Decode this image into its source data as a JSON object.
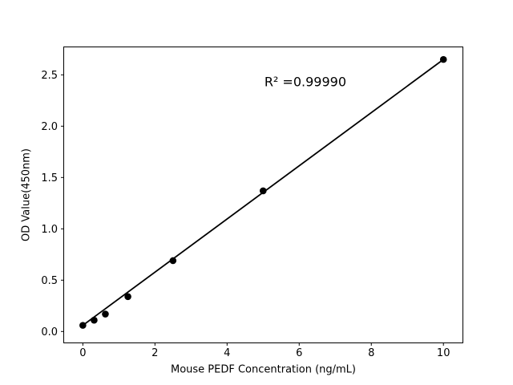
{
  "figure": {
    "background": "#ffffff"
  },
  "chart_data": {
    "type": "scatter",
    "title": "",
    "xlabel": "Mouse PEDF Concentration (ng/mL)",
    "ylabel": "OD Value(450nm)",
    "annotation": {
      "text": "R² =0.99990",
      "x": 6.17,
      "y": 2.39
    },
    "points": {
      "x": [
        0,
        0.3125,
        0.625,
        1.25,
        2.5,
        5,
        10
      ],
      "y": [
        0.06,
        0.11,
        0.17,
        0.34,
        0.69,
        1.37,
        2.65
      ]
    },
    "fit_line": {
      "x": [
        0,
        10
      ],
      "y": [
        0.06,
        2.65
      ]
    },
    "x_ticks": [
      0,
      2,
      4,
      6,
      8,
      10
    ],
    "x_tick_labels": [
      "0",
      "2",
      "4",
      "6",
      "8",
      "10"
    ],
    "y_ticks": [
      0,
      0.5,
      1,
      1.5,
      2,
      2.5
    ],
    "y_tick_labels": [
      "0.0",
      "0.5",
      "1.0",
      "1.5",
      "2.0",
      "2.5"
    ],
    "xlim": [
      -0.53,
      10.54
    ],
    "ylim": [
      -0.111,
      2.772
    ],
    "grid": false,
    "legend": null,
    "colors": {
      "marker": "#000000",
      "line": "#000000",
      "text": "#000000",
      "spine": "#000000",
      "background": "#ffffff"
    }
  }
}
